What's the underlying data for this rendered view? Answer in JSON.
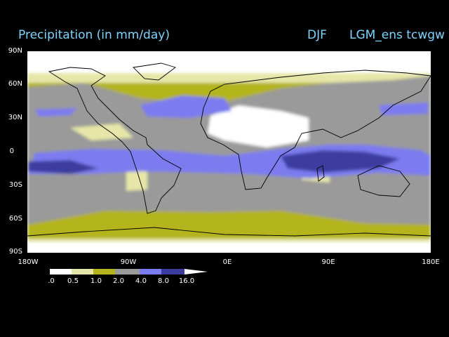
{
  "title": "Precipitation (in mm/day)",
  "season": "DJF",
  "model": "LGM_ens tcwgw",
  "chart_data": {
    "type": "heatmap",
    "variable": "Precipitation",
    "units": "mm/day",
    "projection": "global lat-lon",
    "xlim": [
      -180,
      180
    ],
    "ylim": [
      -90,
      90
    ],
    "x_ticks": [
      "180W",
      "90W",
      "0E",
      "90E",
      "180E"
    ],
    "y_ticks": [
      "90N",
      "60N",
      "30N",
      "0",
      "30S",
      "60S",
      "90S"
    ],
    "colorbar": {
      "levels": [
        ".0",
        "0.5",
        "1.0",
        "2.0",
        "4.0",
        "8.0",
        "16.0"
      ],
      "colors": [
        "#ffffff",
        "#e6e6a8",
        "#b4b41e",
        "#9a9a9a",
        "#7b7bf0",
        "#3c3ca0",
        "#ffffff"
      ]
    }
  }
}
